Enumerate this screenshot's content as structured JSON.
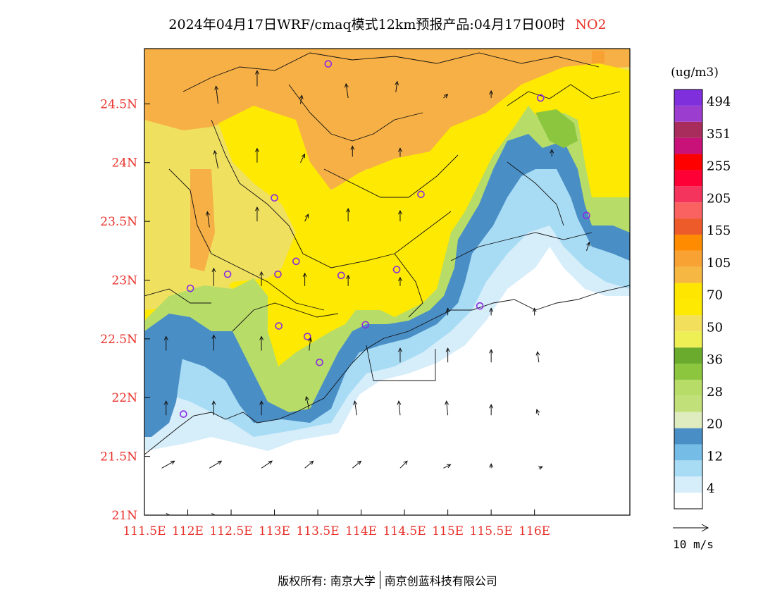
{
  "header": {
    "title": "2024年04月17日WRF/cmaq模式12km预报产品:04月17日00时",
    "pollutant": "NO2"
  },
  "map": {
    "lon_range": [
      111.5,
      117.1
    ],
    "lat_range": [
      21.0,
      24.97
    ],
    "lon_ticks": [
      {
        "value": 111.5,
        "label": "111.5E"
      },
      {
        "value": 112.0,
        "label": "112E"
      },
      {
        "value": 112.5,
        "label": "112.5E"
      },
      {
        "value": 113.0,
        "label": "113E"
      },
      {
        "value": 113.5,
        "label": "113.5E"
      },
      {
        "value": 114.0,
        "label": "114E"
      },
      {
        "value": 114.5,
        "label": "114.5E"
      },
      {
        "value": 115.0,
        "label": "115E"
      },
      {
        "value": 115.5,
        "label": "115.5E"
      },
      {
        "value": 116.0,
        "label": "116E"
      }
    ],
    "lat_ticks": [
      {
        "value": 21.0,
        "label": "21N"
      },
      {
        "value": 21.5,
        "label": "21.5N"
      },
      {
        "value": 22.0,
        "label": "22N"
      },
      {
        "value": 22.5,
        "label": "22.5N"
      },
      {
        "value": 23.0,
        "label": "23N"
      },
      {
        "value": 23.5,
        "label": "23.5N"
      },
      {
        "value": 24.0,
        "label": "24N"
      },
      {
        "value": 24.5,
        "label": "24.5N"
      }
    ],
    "tick_label_color": "#e8322c",
    "stations": [
      {
        "lon": 113.62,
        "lat": 24.84
      },
      {
        "lon": 116.07,
        "lat": 24.55
      },
      {
        "lon": 113.0,
        "lat": 23.7
      },
      {
        "lon": 114.69,
        "lat": 23.73
      },
      {
        "lon": 116.6,
        "lat": 23.55
      },
      {
        "lon": 113.25,
        "lat": 23.16
      },
      {
        "lon": 113.04,
        "lat": 23.05
      },
      {
        "lon": 112.46,
        "lat": 23.05
      },
      {
        "lon": 113.77,
        "lat": 23.04
      },
      {
        "lon": 114.41,
        "lat": 23.09
      },
      {
        "lon": 112.03,
        "lat": 22.93
      },
      {
        "lon": 115.37,
        "lat": 22.78
      },
      {
        "lon": 113.05,
        "lat": 22.61
      },
      {
        "lon": 113.38,
        "lat": 22.52
      },
      {
        "lon": 114.05,
        "lat": 22.62
      },
      {
        "lon": 113.52,
        "lat": 22.3
      },
      {
        "lon": 111.95,
        "lat": 21.86
      }
    ],
    "wind_vectors": [
      {
        "lon": 112.35,
        "lat": 24.5,
        "u": -0.3,
        "v": 2.5
      },
      {
        "lon": 112.8,
        "lat": 24.65,
        "u": 0.0,
        "v": 2.2
      },
      {
        "lon": 113.3,
        "lat": 24.5,
        "u": 0.2,
        "v": 1.2
      },
      {
        "lon": 113.85,
        "lat": 24.55,
        "u": -0.3,
        "v": 2.0
      },
      {
        "lon": 114.4,
        "lat": 24.6,
        "u": 0.2,
        "v": 1.5
      },
      {
        "lon": 114.95,
        "lat": 24.55,
        "u": 0.6,
        "v": 0.5
      },
      {
        "lon": 115.5,
        "lat": 24.55,
        "u": 0.0,
        "v": 1.0
      },
      {
        "lon": 112.35,
        "lat": 23.95,
        "u": -0.5,
        "v": 2.5
      },
      {
        "lon": 112.8,
        "lat": 24.0,
        "u": 0.0,
        "v": 2.0
      },
      {
        "lon": 113.3,
        "lat": 24.0,
        "u": 0.6,
        "v": 1.2
      },
      {
        "lon": 113.9,
        "lat": 24.05,
        "u": 0.0,
        "v": 1.5
      },
      {
        "lon": 114.45,
        "lat": 24.05,
        "u": 0.0,
        "v": 1.2
      },
      {
        "lon": 116.2,
        "lat": 24.05,
        "u": 0.0,
        "v": 1.0
      },
      {
        "lon": 112.25,
        "lat": 23.45,
        "u": -0.3,
        "v": 2.2
      },
      {
        "lon": 112.8,
        "lat": 23.5,
        "u": 0.0,
        "v": 2.0
      },
      {
        "lon": 113.35,
        "lat": 23.5,
        "u": 0.5,
        "v": 1.0
      },
      {
        "lon": 113.85,
        "lat": 23.5,
        "u": 0.0,
        "v": 1.8
      },
      {
        "lon": 114.45,
        "lat": 23.5,
        "u": 0.0,
        "v": 1.5
      },
      {
        "lon": 116.6,
        "lat": 23.25,
        "u": 0.4,
        "v": 1.2
      },
      {
        "lon": 112.3,
        "lat": 22.95,
        "u": 0.0,
        "v": 2.5
      },
      {
        "lon": 112.85,
        "lat": 22.95,
        "u": 0.0,
        "v": 2.0
      },
      {
        "lon": 113.35,
        "lat": 22.95,
        "u": 0.0,
        "v": 1.8
      },
      {
        "lon": 113.85,
        "lat": 22.95,
        "u": 0.0,
        "v": 1.5
      },
      {
        "lon": 114.45,
        "lat": 22.95,
        "u": 0.0,
        "v": 1.2
      },
      {
        "lon": 115.0,
        "lat": 22.7,
        "u": 0.0,
        "v": 1.0
      },
      {
        "lon": 115.5,
        "lat": 22.7,
        "u": 0.0,
        "v": 1.0
      },
      {
        "lon": 116.0,
        "lat": 22.7,
        "u": 0.0,
        "v": 1.0
      },
      {
        "lon": 111.75,
        "lat": 22.4,
        "u": 0.0,
        "v": 2.0
      },
      {
        "lon": 112.3,
        "lat": 22.4,
        "u": 0.0,
        "v": 2.2
      },
      {
        "lon": 112.85,
        "lat": 22.4,
        "u": 0.0,
        "v": 2.0
      },
      {
        "lon": 113.4,
        "lat": 22.4,
        "u": 0.2,
        "v": 1.8
      },
      {
        "lon": 114.45,
        "lat": 22.3,
        "u": 0.0,
        "v": 2.0
      },
      {
        "lon": 115.0,
        "lat": 22.3,
        "u": 0.0,
        "v": 2.0
      },
      {
        "lon": 115.5,
        "lat": 22.3,
        "u": 0.0,
        "v": 1.8
      },
      {
        "lon": 116.05,
        "lat": 22.3,
        "u": -0.2,
        "v": 1.5
      },
      {
        "lon": 111.75,
        "lat": 21.85,
        "u": 0.0,
        "v": 2.0
      },
      {
        "lon": 112.3,
        "lat": 21.85,
        "u": 0.0,
        "v": 2.0
      },
      {
        "lon": 112.85,
        "lat": 21.85,
        "u": 0.0,
        "v": 2.0
      },
      {
        "lon": 113.4,
        "lat": 21.9,
        "u": -0.4,
        "v": 1.8
      },
      {
        "lon": 113.95,
        "lat": 21.85,
        "u": -0.3,
        "v": 2.0
      },
      {
        "lon": 114.45,
        "lat": 21.85,
        "u": -0.2,
        "v": 2.0
      },
      {
        "lon": 115.0,
        "lat": 21.85,
        "u": -0.2,
        "v": 2.0
      },
      {
        "lon": 115.5,
        "lat": 21.85,
        "u": 0.0,
        "v": 1.5
      },
      {
        "lon": 116.05,
        "lat": 21.85,
        "u": -0.3,
        "v": 0.8
      },
      {
        "lon": 111.7,
        "lat": 21.4,
        "u": 1.8,
        "v": 1.0
      },
      {
        "lon": 112.25,
        "lat": 21.4,
        "u": 1.7,
        "v": 1.0
      },
      {
        "lon": 112.85,
        "lat": 21.4,
        "u": 1.5,
        "v": 1.0
      },
      {
        "lon": 113.35,
        "lat": 21.4,
        "u": 1.2,
        "v": 1.0
      },
      {
        "lon": 113.9,
        "lat": 21.4,
        "u": 1.2,
        "v": 1.0
      },
      {
        "lon": 114.45,
        "lat": 21.4,
        "u": 1.0,
        "v": 1.0
      },
      {
        "lon": 114.95,
        "lat": 21.4,
        "u": 1.0,
        "v": 0.5
      },
      {
        "lon": 115.5,
        "lat": 21.4,
        "u": 0.0,
        "v": 0.6
      },
      {
        "lon": 116.05,
        "lat": 21.4,
        "u": 0.5,
        "v": 0.2
      },
      {
        "lon": 111.75,
        "lat": 21.0,
        "u": 0.5,
        "v": 0.0
      },
      {
        "lon": 112.25,
        "lat": 21.0,
        "u": 0.8,
        "v": 0.0
      }
    ]
  },
  "legend": {
    "unit": "(ug/m3)",
    "colors": [
      "#ffffff",
      "#d6edfa",
      "#a8dcf5",
      "#75bde6",
      "#4a8ec6",
      "#dfecc0",
      "#c2e07a",
      "#b7dd68",
      "#8cc63f",
      "#6aab2e",
      "#eeef55",
      "#f2df5c",
      "#fee902",
      "#fee600",
      "#f6b843",
      "#f7a233",
      "#ff8c00",
      "#ee5b2b",
      "#fa6262",
      "#f4345c",
      "#ff0036",
      "#ff0000",
      "#c8127a",
      "#a92d5c",
      "#9b3ecf",
      "#7f2fdc"
    ],
    "labels": [
      "4",
      "12",
      "20",
      "28",
      "36",
      "50",
      "70",
      "105",
      "155",
      "205",
      "255",
      "351",
      "494"
    ]
  },
  "wind_scale": {
    "label": "10 m/s"
  },
  "footer": {
    "copyright": "版权所有: 南京大学",
    "company": "南京创蓝科技有限公司"
  }
}
